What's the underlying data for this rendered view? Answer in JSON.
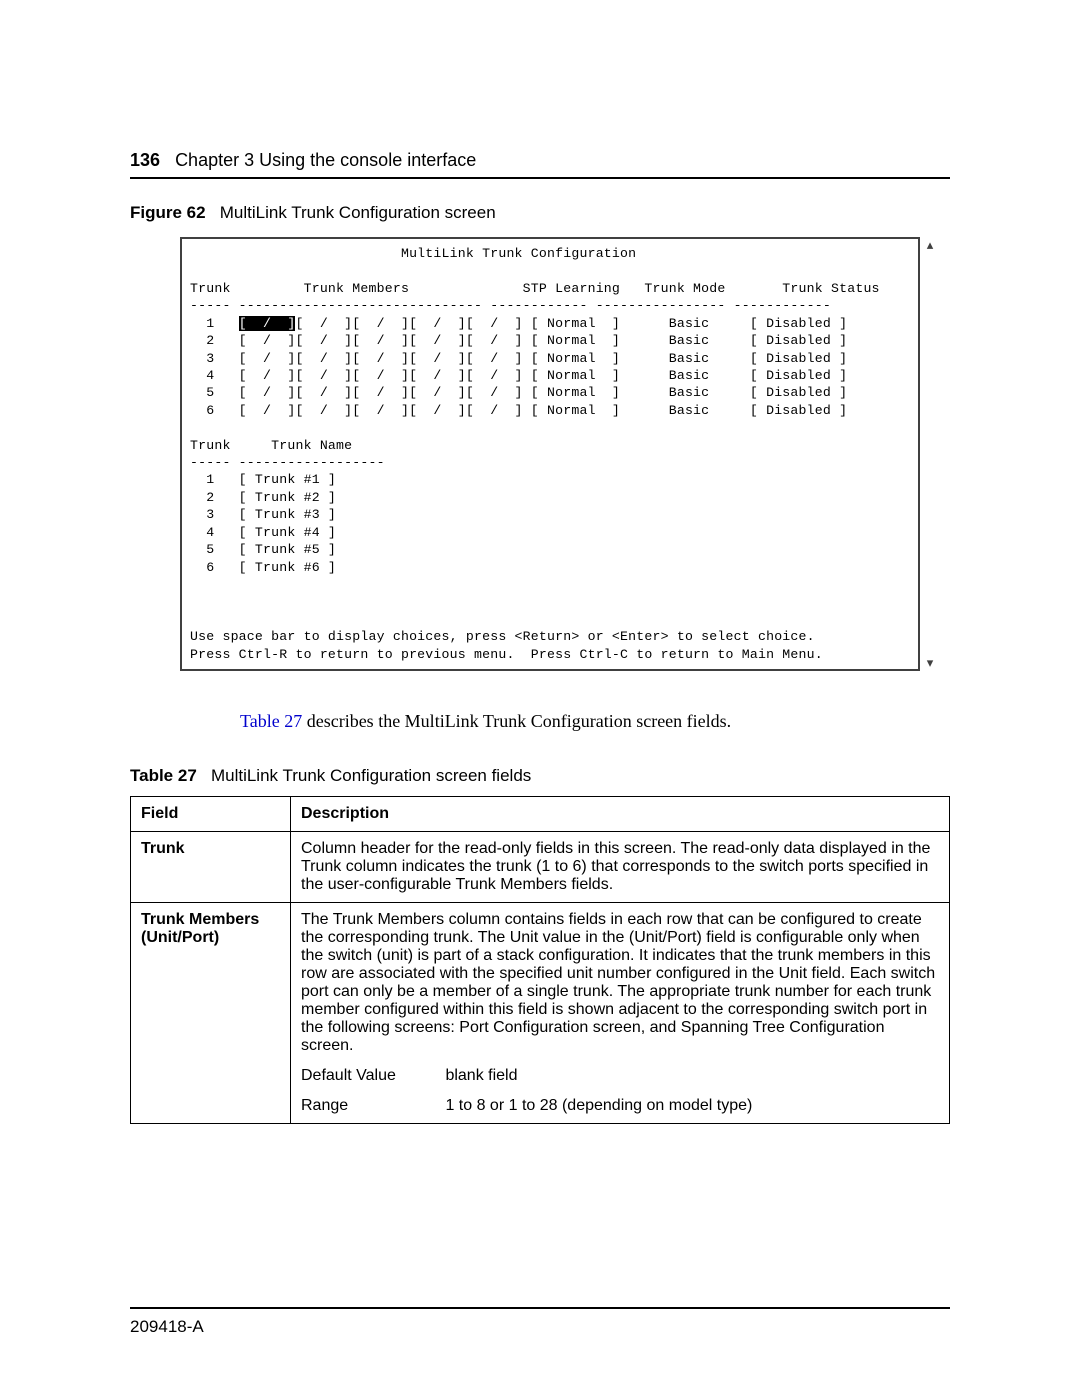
{
  "page": {
    "number": "136",
    "chapter": "Chapter 3  Using the console interface"
  },
  "figure": {
    "label": "Figure 62",
    "title": "MultiLink Trunk Configuration screen"
  },
  "console": {
    "title": "MultiLink Trunk Configuration",
    "headers": {
      "trunk": "Trunk",
      "members": "Trunk Members",
      "stp": "STP Learning",
      "mode": "Trunk Mode",
      "status": "Trunk Status",
      "name": "Trunk Name"
    },
    "rows": [
      {
        "id": "1",
        "stp": "Normal",
        "mode": "Basic",
        "status": "Disabled",
        "name": "Trunk #1",
        "selected": true
      },
      {
        "id": "2",
        "stp": "Normal",
        "mode": "Basic",
        "status": "Disabled",
        "name": "Trunk #2",
        "selected": false
      },
      {
        "id": "3",
        "stp": "Normal",
        "mode": "Basic",
        "status": "Disabled",
        "name": "Trunk #3",
        "selected": false
      },
      {
        "id": "4",
        "stp": "Normal",
        "mode": "Basic",
        "status": "Disabled",
        "name": "Trunk #4",
        "selected": false
      },
      {
        "id": "5",
        "stp": "Normal",
        "mode": "Basic",
        "status": "Disabled",
        "name": "Trunk #5",
        "selected": false
      },
      {
        "id": "6",
        "stp": "Normal",
        "mode": "Basic",
        "status": "Disabled",
        "name": "Trunk #6",
        "selected": false
      }
    ],
    "hint1": "Use space bar to display choices, press <Return> or <Enter> to select choice.",
    "hint2": "Press Ctrl-R to return to previous menu.  Press Ctrl-C to return to Main Menu."
  },
  "body": {
    "link_text": "Table 27",
    "text_rest": " describes the MultiLink Trunk Configuration screen fields."
  },
  "table": {
    "label": "Table 27",
    "title": "MultiLink Trunk Configuration screen fields",
    "head_field": "Field",
    "head_desc": "Description",
    "rows": [
      {
        "field": "Trunk",
        "desc": "Column header for the read-only fields in this screen. The read-only data displayed in the Trunk column indicates the trunk (1 to 6) that corresponds to the switch ports specified in the user-configurable Trunk Members fields."
      },
      {
        "field": "Trunk Members (Unit/Port)",
        "desc": "The Trunk Members column contains fields in each row that can be configured to create the corresponding trunk. The Unit value in the (Unit/Port) field is configurable only when the switch (unit) is part of a stack configuration. It indicates that the trunk members in this row are associated with the specified unit number configured in the Unit field. Each switch port can only be a member of a single trunk. The appropriate trunk number for each trunk member configured within this field is shown adjacent to the corresponding switch port in the following screens: Port Configuration screen, and Spanning Tree Configuration screen.",
        "default_label": "Default Value",
        "default_value": "blank field",
        "range_label": "Range",
        "range_value": "1 to 8 or 1 to 28 (depending on model type)"
      }
    ]
  },
  "footer": {
    "docnum": "209418-A"
  },
  "style": {
    "console_border": "#404040",
    "link_color": "#0000cc"
  }
}
